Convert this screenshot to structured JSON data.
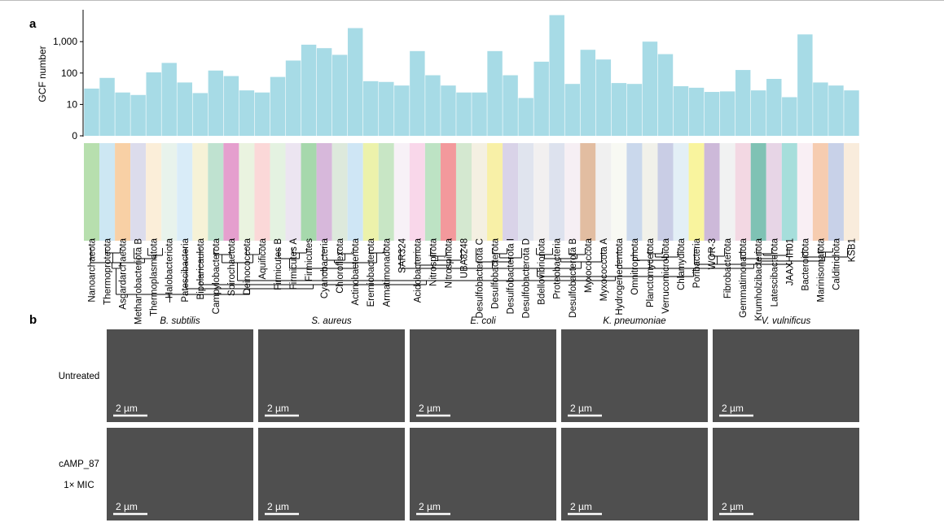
{
  "panel_a": {
    "label": "a",
    "chart_data": {
      "type": "bar",
      "ylabel": "GCF number",
      "yscale": "log",
      "ylim": [
        1,
        10000
      ],
      "yticks": [
        {
          "value": 1,
          "label": "0"
        },
        {
          "value": 10,
          "label": "10"
        },
        {
          "value": 100,
          "label": "100"
        },
        {
          "value": 1000,
          "label": "1,000"
        }
      ],
      "categories": [
        "Nanoarchaeota",
        "Thermoproteota",
        "Asgardarchaeota",
        "Methanobacteriota B",
        "Thermoplasmatota",
        "Halobacteriota",
        "Patescibacteria",
        "Bipolaricaulota",
        "Campylobacterota",
        "Spirochaetota",
        "Deinococcota",
        "Aquificota",
        "Firmicutes B",
        "Firmicutes A",
        "Firmicutes",
        "Cyanobacteria",
        "Chloroflexota",
        "Actinobacteriota",
        "Eremiobacterota",
        "Armatimonadota",
        "SAR324",
        "Acidobacteriota",
        "Nitrospirota",
        "Nitrospinota",
        "UBA8248",
        "Desulfobacterota C",
        "Desulfobacterota",
        "Desulfobacterota I",
        "Desulfobacterota D",
        "Bdellovibrionota",
        "Proteobacteria",
        "Desulfobacterota B",
        "Myxococcota",
        "Myxococcota A",
        "Hydrogenedentota",
        "Omnitrophota",
        "Planctomycetota",
        "Verrucomicrobiota",
        "Chlamydiota",
        "Poribacteria",
        "WOR-3",
        "Fibrobacterota",
        "Gemmatimonadota",
        "Krumholzibacteriota",
        "Latescibacterota",
        "JAAXHH01",
        "Bacteroidota",
        "Marinisomatota",
        "Calditrichota",
        "KSB1"
      ],
      "values": [
        32,
        70,
        24,
        20,
        105,
        210,
        50,
        23,
        120,
        80,
        28,
        24,
        75,
        250,
        800,
        620,
        380,
        2700,
        55,
        52,
        40,
        500,
        85,
        40,
        24,
        24,
        500,
        85,
        16,
        230,
        7000,
        45,
        550,
        270,
        48,
        45,
        1000,
        400,
        38,
        34,
        25,
        26,
        125,
        28,
        65,
        17,
        1700,
        50,
        40,
        28
      ],
      "grid": false
    },
    "phylum_colors": [
      "#b7dfae",
      "#cde7f3",
      "#f8d0a5",
      "#dcdcec",
      "#fbeed9",
      "#e8f3ec",
      "#d9ecf8",
      "#f6f2d7",
      "#bfe2d0",
      "#e59fce",
      "#eaf3e0",
      "#fbd8d8",
      "#e4f2e1",
      "#ece5f1",
      "#a6d8ac",
      "#d7b8db",
      "#dde9dc",
      "#cfe6f5",
      "#ecf2ab",
      "#c8e6c5",
      "#f7f1f7",
      "#f9d7ea",
      "#bde3c4",
      "#f3999c",
      "#d4e8d0",
      "#f4f0e2",
      "#f8f0a7",
      "#d9d3e8",
      "#e0e4ee",
      "#f2f0f0",
      "#dde2ee",
      "#f6eff4",
      "#e2bda1",
      "#f0f0f0",
      "#f8f9f3",
      "#cad8ec",
      "#f1f1ea",
      "#c9cde5",
      "#e3eff6",
      "#f9f49e",
      "#cdb9d9",
      "#f1f2f2",
      "#f3d8e3",
      "#7fc2b4",
      "#e7d5e6",
      "#a6dedb",
      "#f9eff4",
      "#f6ccb0",
      "#c8d1e8",
      "#f9ecdc"
    ]
  },
  "panel_b": {
    "label": "b",
    "columns": [
      "B. subtilis",
      "S. aureus",
      "E. coli",
      "K. pneumoniae",
      "V. vulnificus"
    ],
    "rows": [
      {
        "label_lines": [
          "Untreated"
        ]
      },
      {
        "label_lines": [
          "cAMP_87",
          "1× MIC"
        ]
      }
    ],
    "scale_bar": "2 µm"
  }
}
